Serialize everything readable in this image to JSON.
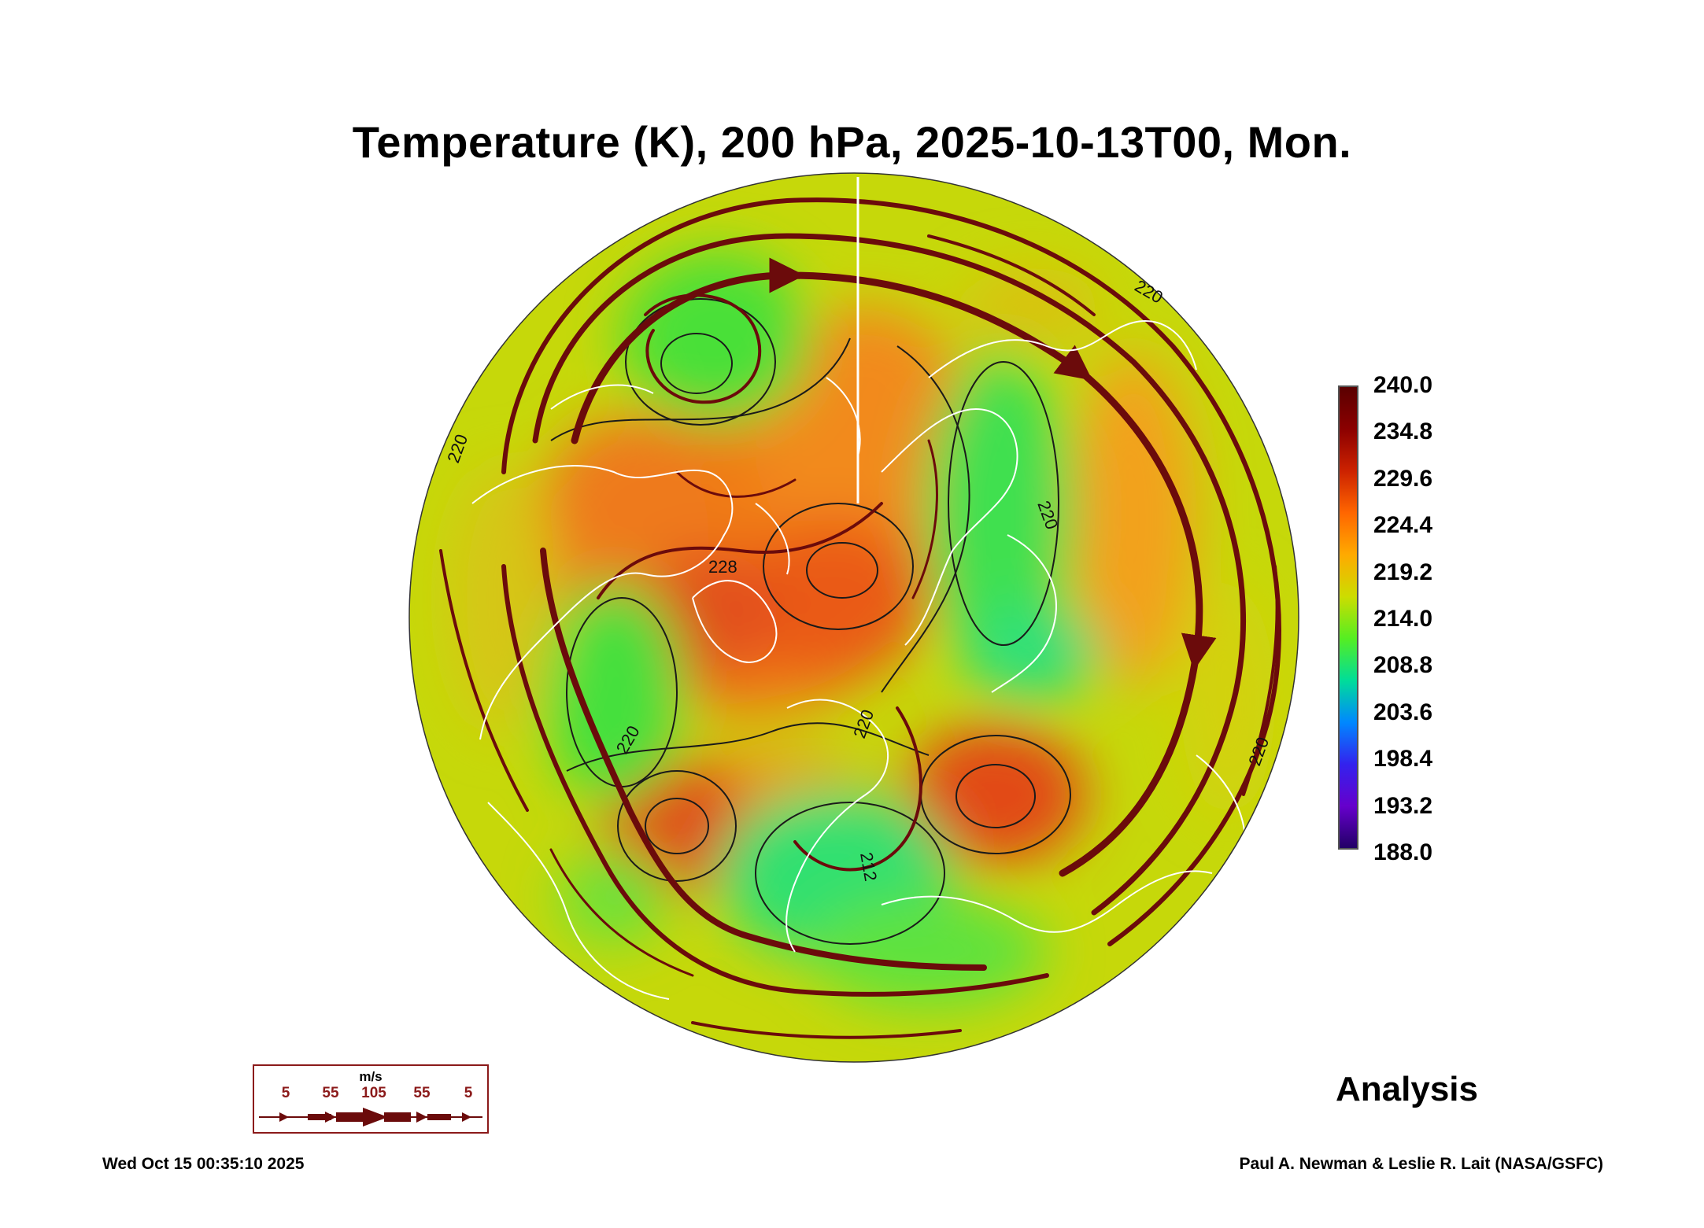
{
  "title": "Temperature (K), 200 hPa, 2025-10-13T00, Mon.",
  "colorbar": {
    "ticks": [
      "240.0",
      "234.8",
      "229.6",
      "224.4",
      "219.2",
      "214.0",
      "208.8",
      "203.6",
      "198.4",
      "193.2",
      "188.0"
    ],
    "colors": [
      "#5a0000",
      "#8b0000",
      "#cc2200",
      "#ff6600",
      "#ffaa00",
      "#ccdd00",
      "#55ee22",
      "#00dd99",
      "#0088ff",
      "#3322ee",
      "#6600cc",
      "#220066"
    ]
  },
  "contour_labels": [
    "220",
    "220",
    "220",
    "220",
    "220",
    "220",
    "212",
    "228"
  ],
  "wind_legend": {
    "unit": "m/s",
    "speeds": [
      "5",
      "55",
      "105",
      "55",
      "5"
    ]
  },
  "analysis_label": "Analysis",
  "timestamp": "Wed Oct 15 00:35:10 2025",
  "credit": "Paul A. Newman & Leslie R. Lait (NASA/GSFC)"
}
